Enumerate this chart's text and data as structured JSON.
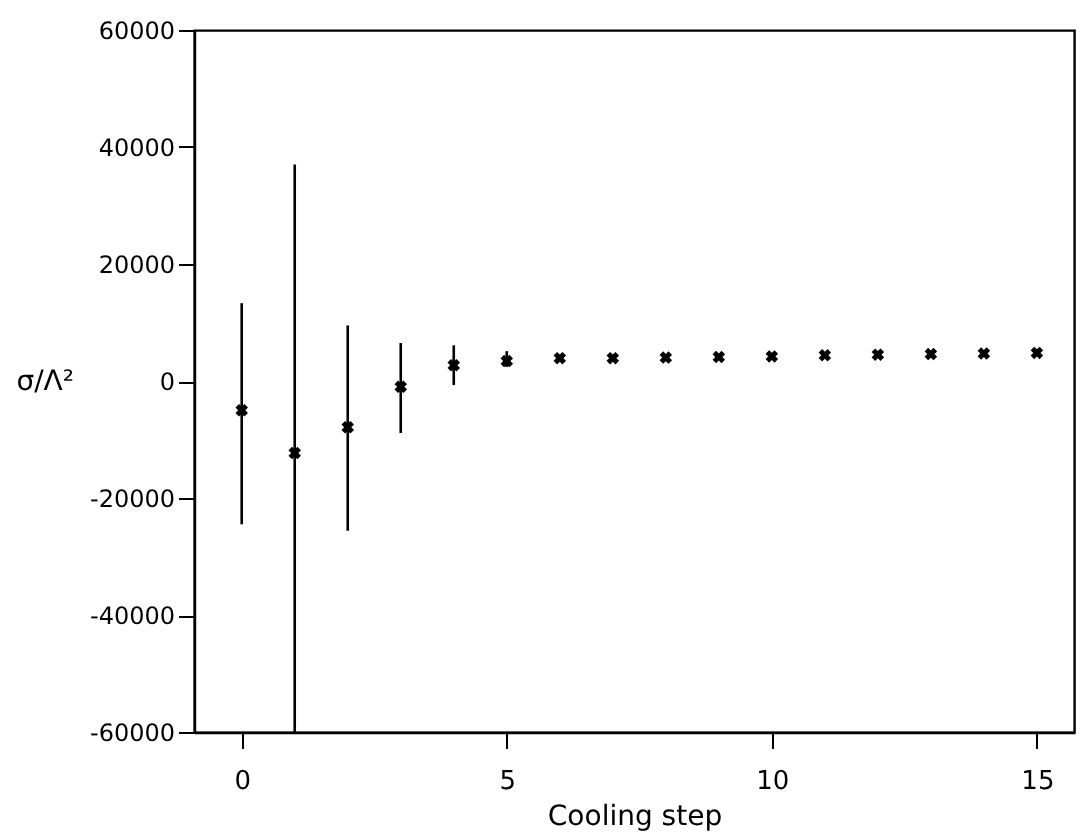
{
  "chart_data": {
    "type": "scatter",
    "xlabel": "Cooling step",
    "ylabel": "σ/Λ²",
    "x": [
      0,
      1,
      2,
      3,
      4,
      5,
      6,
      7,
      8,
      9,
      10,
      11,
      12,
      13,
      14,
      15
    ],
    "values": [
      -5000,
      -12300,
      -7900,
      -1000,
      2700,
      3400,
      3900,
      3900,
      4000,
      4100,
      4200,
      4400,
      4500,
      4600,
      4700,
      4800
    ],
    "errors": [
      [
        -24500,
        13300
      ],
      [
        -60000,
        37000
      ],
      [
        -25600,
        9500
      ],
      [
        -8900,
        6500
      ],
      [
        -700,
        6100
      ],
      [
        2400,
        5100
      ],
      null,
      null,
      null,
      null,
      null,
      null,
      null,
      null,
      null,
      null
    ],
    "color": "#000000",
    "marker": "cross",
    "xlim": [
      -0.9,
      15.7
    ],
    "xticks": [
      0,
      5,
      10,
      15
    ],
    "ylim": [
      -60000,
      60000
    ],
    "yticks": [
      -60000,
      -40000,
      -20000,
      0,
      20000,
      40000,
      60000
    ],
    "grid": false
  }
}
